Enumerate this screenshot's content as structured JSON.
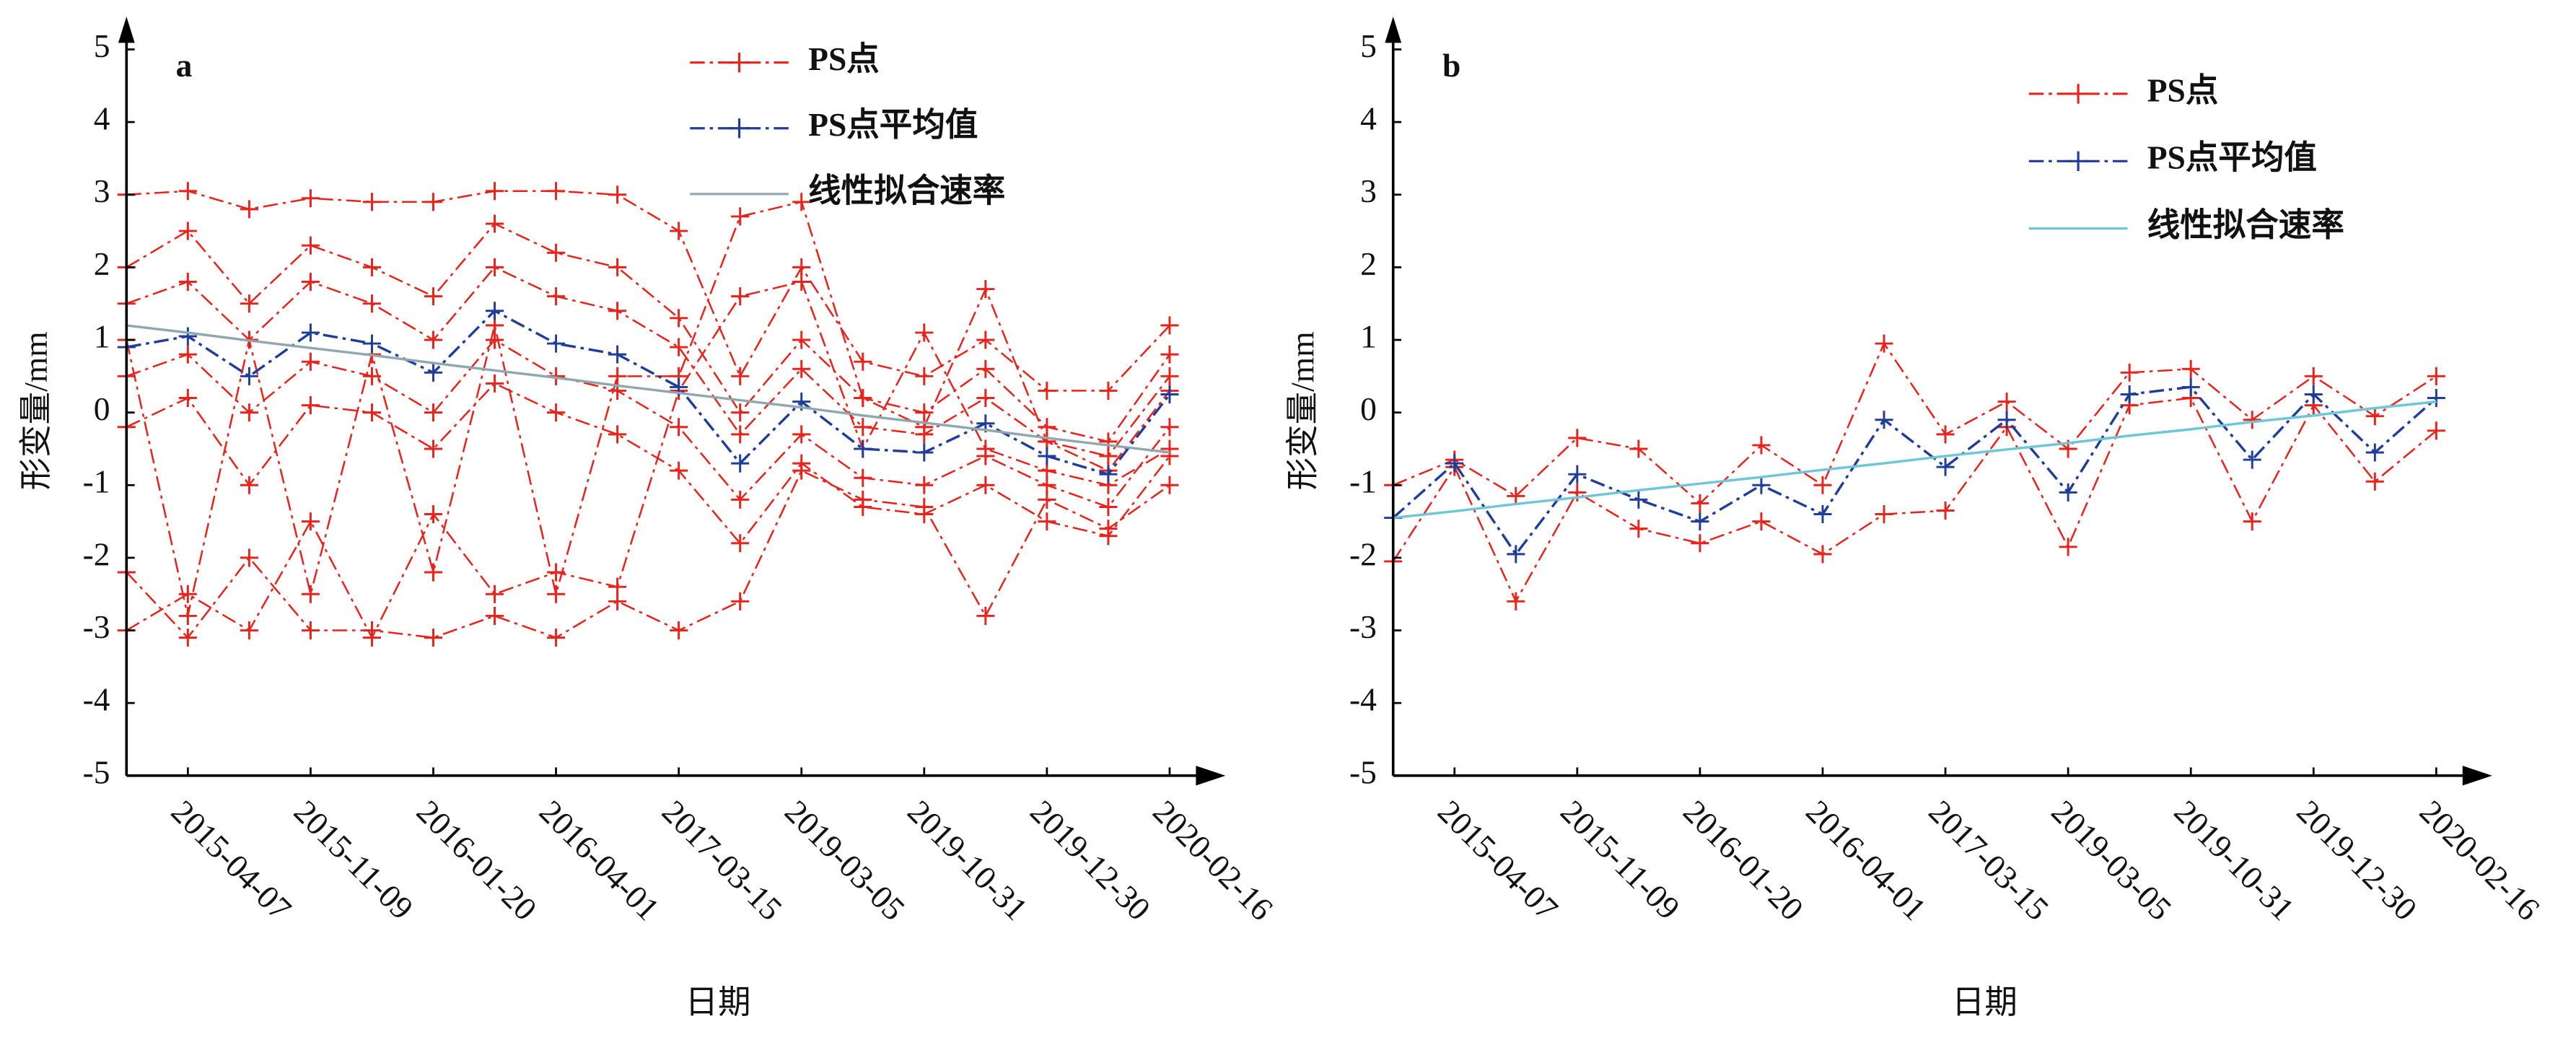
{
  "chart_data": [
    {
      "type": "line",
      "label": "a",
      "xlabel": "日期",
      "ylabel": "形变量/mm",
      "categories": [
        null,
        "2015-04-07",
        null,
        "2015-11-09",
        null,
        "2016-01-20",
        null,
        "2016-04-01",
        null,
        "2017-03-15",
        null,
        "2019-03-05",
        null,
        "2019-10-31",
        null,
        "2019-12-30",
        null,
        "2020-02-16"
      ],
      "ylim": [
        -5,
        5
      ],
      "yticks": [
        -5,
        -4,
        -3,
        -2,
        -1,
        0,
        1,
        2,
        3,
        4,
        5
      ],
      "series": [
        {
          "name": "PS点",
          "color": "#e8231c",
          "lines": [
            [
              3.0,
              3.05,
              2.8,
              2.95,
              2.9,
              2.9,
              3.05,
              3.05,
              3.0,
              2.5,
              0.5,
              2.0,
              0.7,
              0.5,
              1.0,
              0.3,
              0.3,
              1.2
            ],
            [
              2.0,
              2.5,
              1.5,
              2.3,
              2.0,
              1.6,
              2.6,
              2.2,
              2.0,
              1.3,
              0.0,
              1.0,
              0.2,
              0.0,
              0.6,
              -0.2,
              -0.4,
              0.8
            ],
            [
              1.5,
              1.8,
              1.0,
              1.8,
              1.5,
              1.0,
              2.0,
              1.6,
              1.4,
              0.9,
              -0.3,
              0.6,
              -0.2,
              -0.3,
              0.2,
              -0.4,
              -0.6,
              0.5
            ],
            [
              0.5,
              0.8,
              0.0,
              0.7,
              0.5,
              0.0,
              1.0,
              0.5,
              0.3,
              -0.2,
              -1.2,
              -0.3,
              -0.9,
              -1.0,
              -0.6,
              -1.0,
              -1.3,
              -0.2
            ],
            [
              -0.2,
              0.2,
              -1.0,
              0.1,
              0.0,
              -0.5,
              0.4,
              0.0,
              -0.3,
              -0.8,
              -1.8,
              -0.7,
              -1.3,
              -1.4,
              -1.0,
              -1.5,
              -1.7,
              -0.6
            ],
            [
              -2.2,
              -3.1,
              -2.0,
              -3.0,
              -3.0,
              -3.1,
              -2.8,
              -3.1,
              -2.6,
              -3.0,
              -2.6,
              -0.8,
              -1.2,
              -1.3,
              -2.8,
              -1.2,
              -1.6,
              -1.0
            ],
            [
              1.0,
              -2.8,
              1.0,
              -2.5,
              0.8,
              -2.2,
              1.2,
              -2.5,
              0.5,
              0.5,
              2.7,
              2.9,
              0.2,
              -0.2,
              1.7,
              -0.4,
              -0.8,
              0.3
            ],
            [
              -3.0,
              -2.5,
              -3.0,
              -1.5,
              -3.1,
              -1.4,
              -2.5,
              -2.2,
              -2.4,
              0.3,
              1.6,
              1.8,
              -0.5,
              1.1,
              -0.5,
              -0.8,
              -1.0,
              -0.5
            ]
          ]
        },
        {
          "name": "PS点平均值",
          "color": "#1f3d99",
          "values": [
            0.9,
            1.05,
            0.5,
            1.1,
            0.95,
            0.55,
            1.4,
            0.95,
            0.8,
            0.35,
            -0.7,
            0.15,
            -0.5,
            -0.55,
            -0.15,
            -0.6,
            -0.85,
            0.25
          ]
        },
        {
          "name": "线性拟合速率",
          "color": "#8fa8b0",
          "values": [
            1.2,
            1.1,
            0.99,
            0.89,
            0.79,
            0.68,
            0.58,
            0.48,
            0.37,
            0.27,
            0.17,
            0.07,
            -0.04,
            -0.14,
            -0.24,
            -0.35,
            -0.45,
            -0.55
          ]
        }
      ]
    },
    {
      "type": "line",
      "label": "b",
      "xlabel": "日期",
      "ylabel": "形变量/mm",
      "categories": [
        null,
        "2015-04-07",
        null,
        "2015-11-09",
        null,
        "2016-01-20",
        null,
        "2016-04-01",
        null,
        "2017-03-15",
        null,
        "2019-03-05",
        null,
        "2019-10-31",
        null,
        "2019-12-30",
        null,
        "2020-02-16"
      ],
      "ylim": [
        -5,
        5
      ],
      "yticks": [
        -5,
        -4,
        -3,
        -2,
        -1,
        0,
        1,
        2,
        3,
        4,
        5
      ],
      "series": [
        {
          "name": "PS点",
          "color": "#e8231c",
          "lines": [
            [
              -1.0,
              -0.65,
              -1.15,
              -0.35,
              -0.5,
              -1.25,
              -0.45,
              -1.0,
              0.95,
              -0.3,
              0.15,
              -0.5,
              0.55,
              0.6,
              -0.1,
              0.5,
              -0.05,
              0.5
            ],
            [
              -2.05,
              -0.75,
              -2.6,
              -1.1,
              -1.6,
              -1.8,
              -1.5,
              -1.95,
              -1.4,
              -1.35,
              -0.2,
              -1.85,
              0.1,
              0.2,
              -1.5,
              0.1,
              -0.95,
              -0.25
            ]
          ]
        },
        {
          "name": "PS点平均值",
          "color": "#1f3d99",
          "values": [
            -1.45,
            -0.7,
            -1.95,
            -0.85,
            -1.2,
            -1.5,
            -1.0,
            -1.4,
            -0.1,
            -0.75,
            -0.1,
            -1.1,
            0.25,
            0.35,
            -0.65,
            0.25,
            -0.55,
            0.2
          ]
        },
        {
          "name": "线性拟合速率",
          "color": "#6ec6d6",
          "values": [
            -1.45,
            -1.36,
            -1.26,
            -1.17,
            -1.07,
            -0.98,
            -0.89,
            -0.79,
            -0.7,
            -0.6,
            -0.51,
            -0.42,
            -0.32,
            -0.23,
            -0.13,
            -0.04,
            0.06,
            0.15
          ]
        }
      ]
    }
  ]
}
